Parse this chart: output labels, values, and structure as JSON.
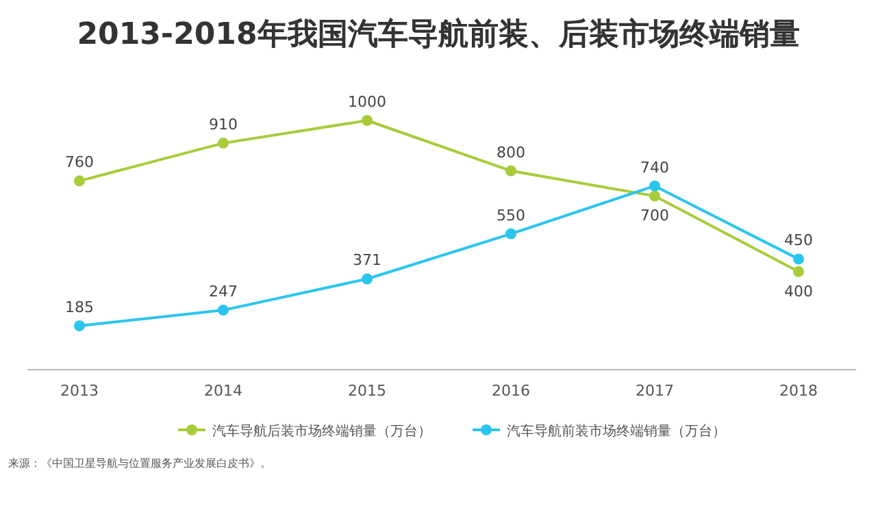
{
  "chart_data": {
    "type": "line",
    "title": "2013-2018年我国汽车导航前装、后装市场终端销量",
    "categories": [
      "2013",
      "2014",
      "2015",
      "2016",
      "2017",
      "2018"
    ],
    "series": [
      {
        "name": "汽车导航后装市场终端销量（万台）",
        "color": "#a8cb3a",
        "values": [
          760,
          910,
          1000,
          800,
          700,
          400
        ]
      },
      {
        "name": "汽车导航前装市场终端销量（万台）",
        "color": "#2ac5ee",
        "values": [
          185,
          247,
          371,
          550,
          740,
          450
        ]
      }
    ],
    "data_labels": true,
    "marker": "circle",
    "legend": "bottom",
    "annotations": [
      "来源：《中国卫星导航与位置服务产业发展白皮书》。"
    ]
  }
}
